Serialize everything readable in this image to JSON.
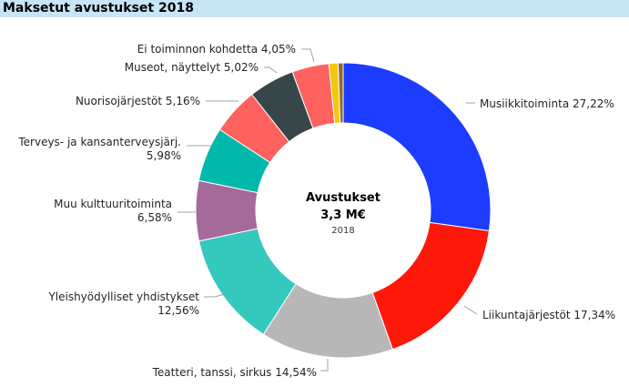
{
  "header": {
    "title": "Maksetut avustukset 2018"
  },
  "center": {
    "title": "Avustukset",
    "value": "3,3 M€",
    "year": "2018"
  },
  "chart_data": {
    "type": "pie",
    "donut": true,
    "title": "Maksetut avustukset 2018",
    "categories": [
      "Musiikkitoiminta",
      "Liikuntajärjestöt",
      "Teatteri, tanssi, sirkus",
      "Yleishyödylliset yhdistykset",
      "Muu kulttuuritoiminta",
      "Terveys- ja kansanterveysjärj.",
      "Nuorisojärjestöt",
      "Museot, näyttelyt",
      "Ei toiminnon kohdetta",
      "",
      ""
    ],
    "values": [
      27.22,
      17.34,
      14.54,
      12.56,
      6.58,
      5.98,
      5.16,
      5.02,
      4.05,
      1.0,
      0.55
    ],
    "value_labels": [
      "27,22%",
      "17,34%",
      "14,54%",
      "12,56%",
      "6,58%",
      "5,98%",
      "5,16%",
      "5,02%",
      "4,05%",
      "",
      ""
    ],
    "colors": [
      "#1c3cff",
      "#fe180a",
      "#b7b7b7",
      "#35c8bd",
      "#a5699a",
      "#02b8aa",
      "#fd625e",
      "#374649",
      "#fe625e",
      "#f2c80f",
      "#8a6a3b"
    ],
    "legend": "none"
  }
}
